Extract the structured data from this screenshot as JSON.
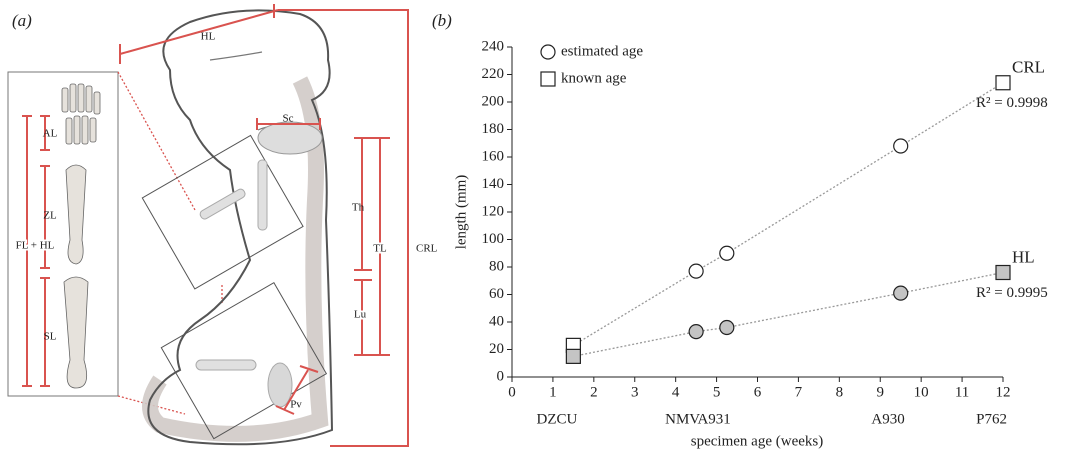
{
  "diagram": {
    "panel_label": "(a)",
    "labels": [
      "HL",
      "Sc",
      "AL",
      "ZL",
      "FL + HL",
      "SL",
      "Th",
      "TL",
      "Lu",
      "CRL",
      "Pv"
    ]
  },
  "chart_data": {
    "type": "scatter",
    "panel_label": "(b)",
    "x_label": "specimen age (weeks)",
    "y_label": "length (mm)",
    "xlim": [
      0,
      12
    ],
    "ylim": [
      0,
      240
    ],
    "xticks": [
      0,
      1,
      2,
      3,
      4,
      5,
      6,
      7,
      8,
      9,
      10,
      11,
      12
    ],
    "yticks": [
      0,
      20,
      40,
      60,
      80,
      100,
      120,
      140,
      160,
      180,
      200,
      220,
      240
    ],
    "line_color": "#999999",
    "legend": [
      {
        "label": "estimated age",
        "marker": "circle"
      },
      {
        "label": "known age",
        "marker": "square"
      }
    ],
    "specimens": {
      "x": [
        1.5,
        4.5,
        5.25,
        9.5,
        12
      ],
      "labels": [
        "DZCU",
        "NMV",
        "A931",
        "A930",
        "P762"
      ]
    },
    "series": [
      {
        "name": "CRL",
        "color": "#ffffff",
        "x": [
          1.5,
          4.5,
          5.25,
          9.5,
          12
        ],
        "values": [
          23,
          77,
          90,
          168,
          214
        ],
        "markers": [
          "square",
          "circle",
          "circle",
          "circle",
          "square"
        ],
        "annotation": "R² = 0.9998"
      },
      {
        "name": "HL",
        "color": "#c4c4c4",
        "x": [
          1.5,
          4.5,
          5.25,
          9.5,
          12
        ],
        "values": [
          15,
          33,
          36,
          61,
          76
        ],
        "markers": [
          "square",
          "circle",
          "circle",
          "circle",
          "square"
        ],
        "annotation": "R² = 0.9995"
      }
    ]
  }
}
